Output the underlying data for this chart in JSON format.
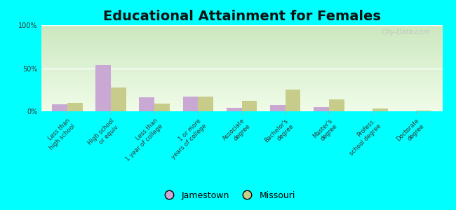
{
  "title": "Educational Attainment for Females",
  "categories": [
    "Less than\nhigh school",
    "High school\nor equiv.",
    "Less than\n1 year of college",
    "1 or more\nyears of college",
    "Associate\ndegree",
    "Bachelor's\ndegree",
    "Master's\ndegree",
    "Profess.\nschool degree",
    "Doctorate\ndegree"
  ],
  "jamestown": [
    8,
    54,
    16,
    17,
    4,
    7,
    5,
    0,
    0
  ],
  "missouri": [
    10,
    28,
    9,
    17,
    12,
    25,
    14,
    3,
    1
  ],
  "jamestown_color": "#c9a8d4",
  "missouri_color": "#c8cc8a",
  "ylim": [
    0,
    100
  ],
  "yticks": [
    0,
    50,
    100
  ],
  "ytick_labels": [
    "0%",
    "50%",
    "100%"
  ],
  "bar_width": 0.35,
  "fig_bg_color": "#00ffff",
  "plot_bg_top": "#cce8c0",
  "plot_bg_bottom": "#f0fce8",
  "legend_jamestown": "Jamestown",
  "legend_missouri": "Missouri",
  "title_fontsize": 14,
  "watermark": "City-Data.com"
}
